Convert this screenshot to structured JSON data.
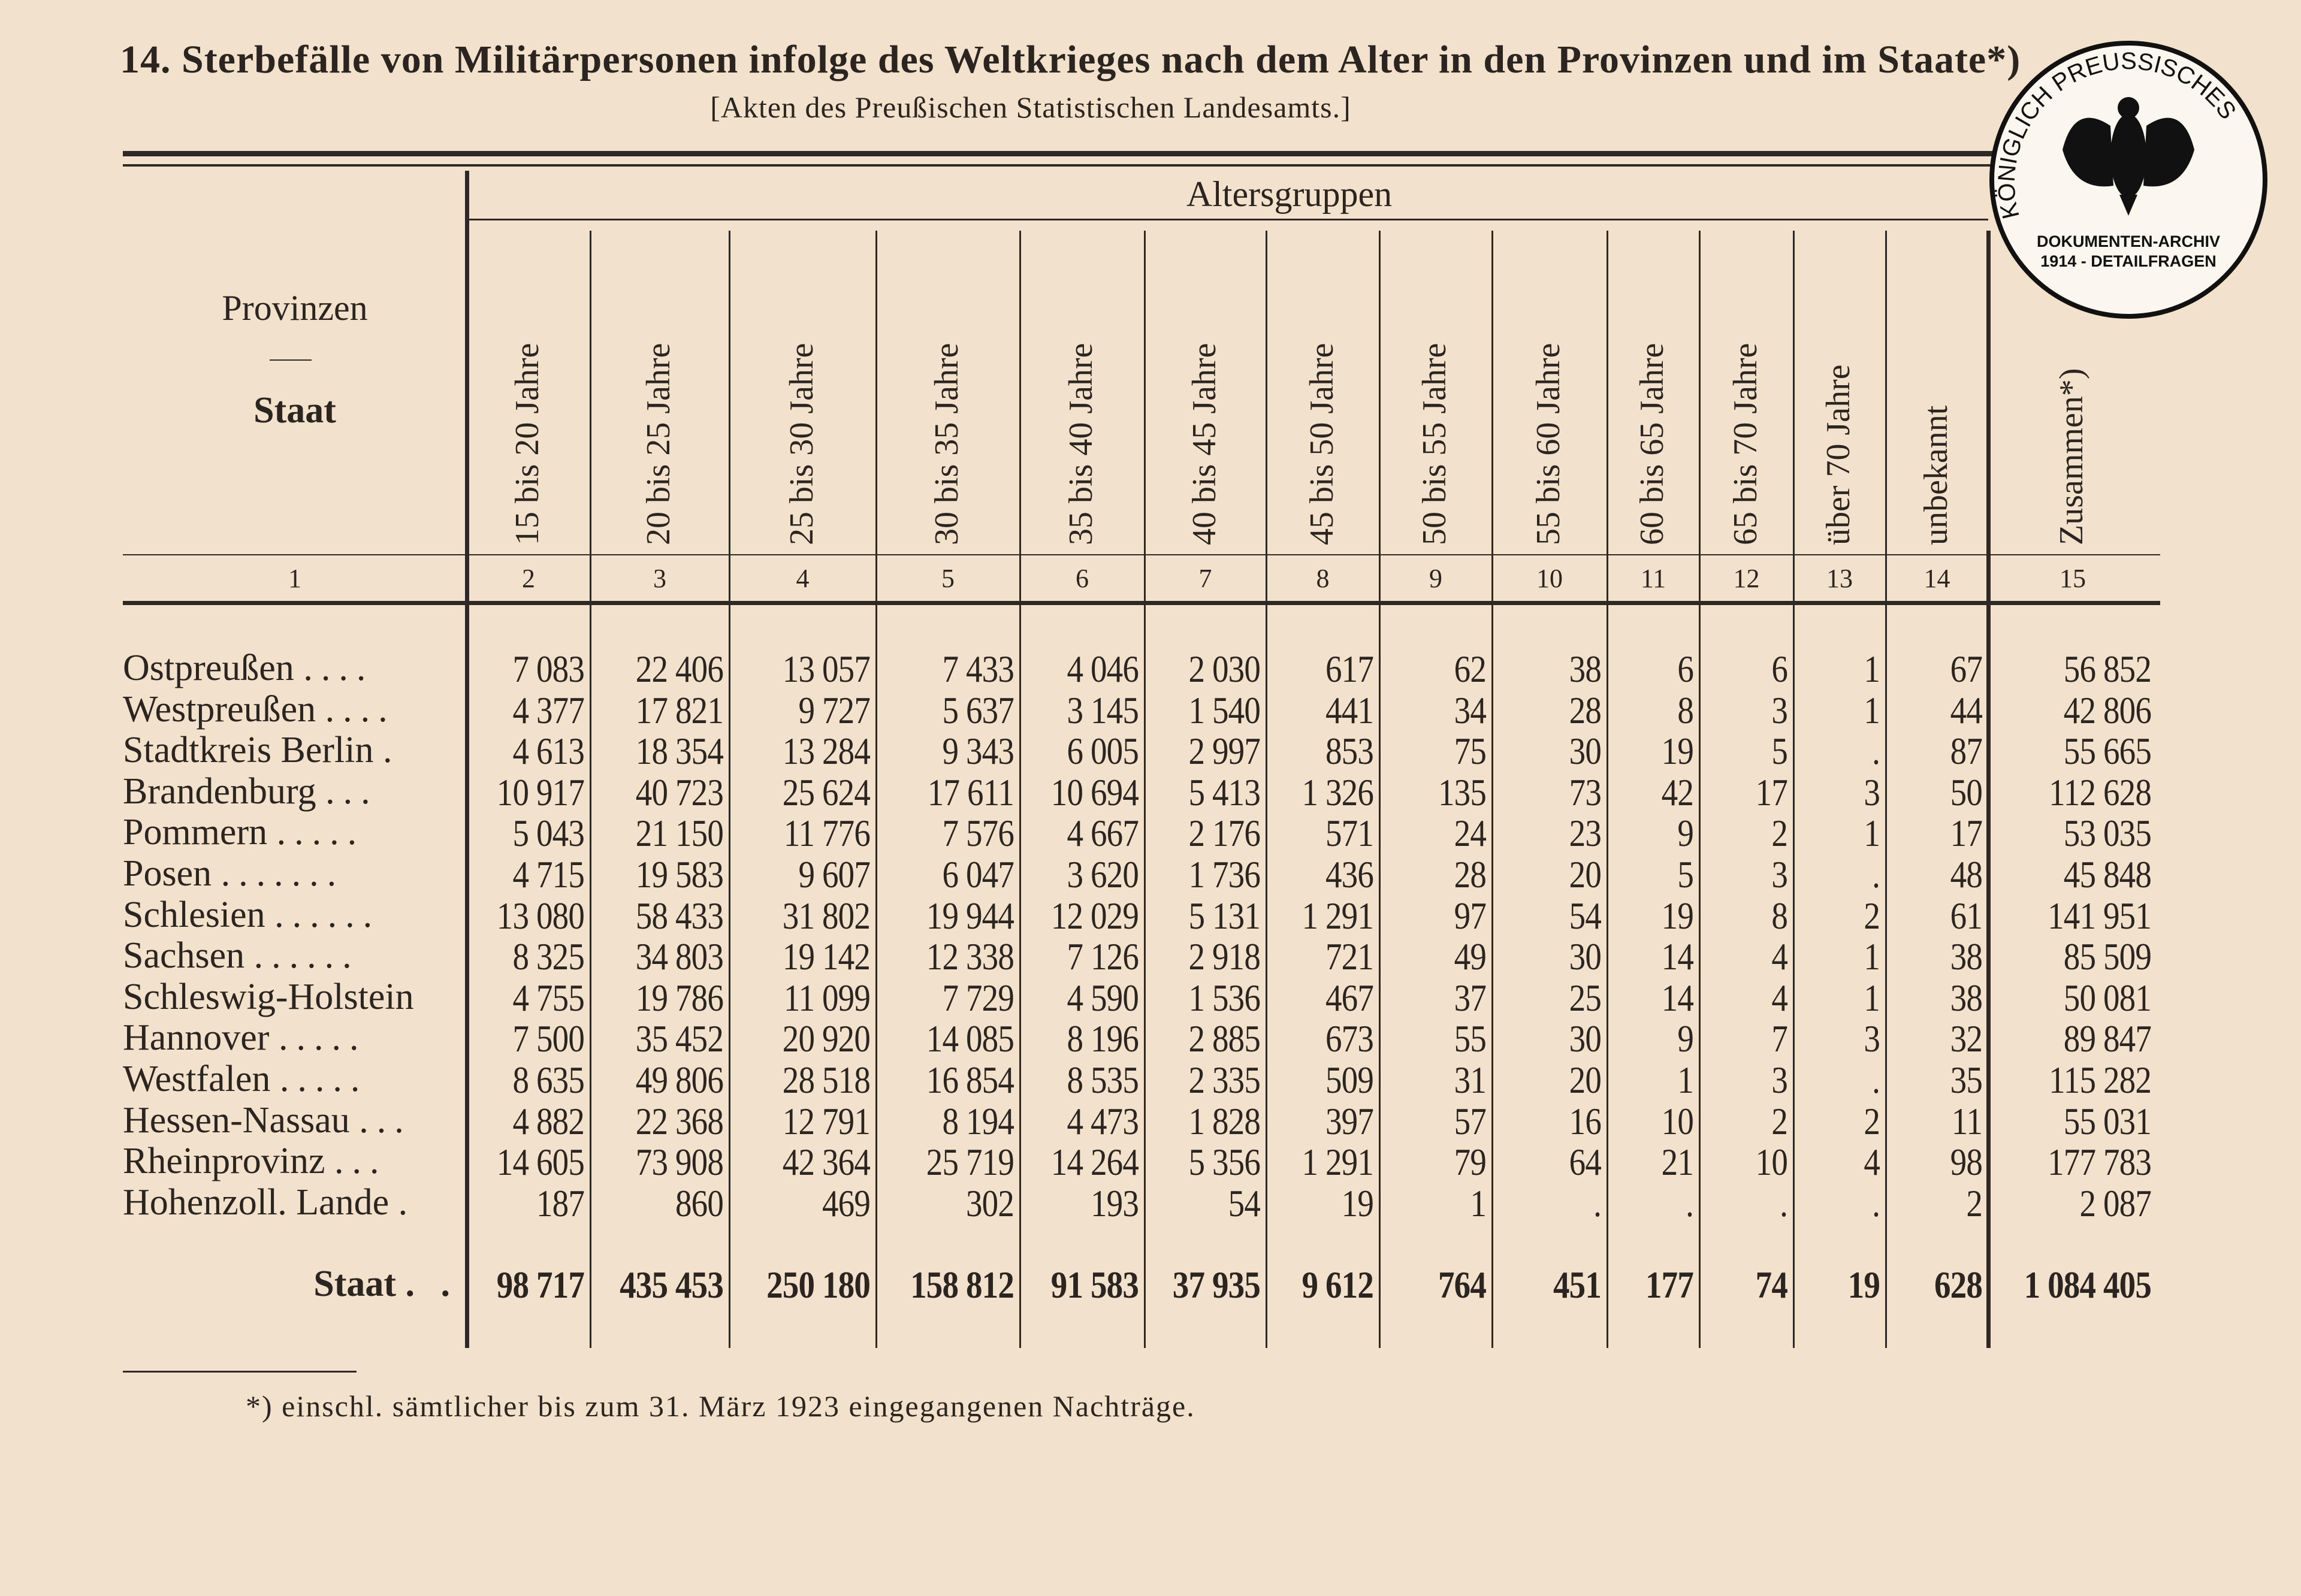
{
  "title": "14. Sterbefälle von Militärpersonen infolge des Weltkrieges nach dem Alter in den Provinzen und im Staate*)",
  "subtitle": "[Akten des Preußischen Statistischen Landesamts.]",
  "header": {
    "row_header_top": "Provinzen",
    "row_header_dash": "—",
    "row_header_bottom": "Staat",
    "group_label": "Altersgruppen",
    "columns": [
      "15 bis 20 Jahre",
      "20 bis 25 Jahre",
      "25 bis 30 Jahre",
      "30 bis 35 Jahre",
      "35 bis 40 Jahre",
      "40 bis 45 Jahre",
      "45 bis 50 Jahre",
      "50 bis 55 Jahre",
      "55 bis 60 Jahre",
      "60 bis 65 Jahre",
      "65 bis 70 Jahre",
      "über 70 Jahre",
      "unbekannt",
      "Zusammen*)"
    ],
    "column_numbers": [
      "1",
      "2",
      "3",
      "4",
      "5",
      "6",
      "7",
      "8",
      "9",
      "10",
      "11",
      "12",
      "13",
      "14",
      "15"
    ]
  },
  "rows": [
    {
      "label": "Ostpreußen",
      "dots": "....",
      "values": [
        "7 083",
        "22 406",
        "13 057",
        "7 433",
        "4 046",
        "2 030",
        "617",
        "62",
        "38",
        "6",
        "6",
        "1",
        "67",
        "56 852"
      ]
    },
    {
      "label": "Westpreußen",
      "dots": "....",
      "values": [
        "4 377",
        "17 821",
        "9 727",
        "5 637",
        "3 145",
        "1 540",
        "441",
        "34",
        "28",
        "8",
        "3",
        "1",
        "44",
        "42 806"
      ]
    },
    {
      "label": "Stadtkreis Berlin",
      "dots": ".",
      "values": [
        "4 613",
        "18 354",
        "13 284",
        "9 343",
        "6 005",
        "2 997",
        "853",
        "75",
        "30",
        "19",
        "5",
        ".",
        "87",
        "55 665"
      ]
    },
    {
      "label": "Brandenburg",
      "dots": "...",
      "values": [
        "10 917",
        "40 723",
        "25 624",
        "17 611",
        "10 694",
        "5 413",
        "1 326",
        "135",
        "73",
        "42",
        "17",
        "3",
        "50",
        "112 628"
      ]
    },
    {
      "label": "Pommern",
      "dots": ".....",
      "values": [
        "5 043",
        "21 150",
        "11 776",
        "7 576",
        "4 667",
        "2 176",
        "571",
        "24",
        "23",
        "9",
        "2",
        "1",
        "17",
        "53 035"
      ]
    },
    {
      "label": "Posen",
      "dots": ".......",
      "values": [
        "4 715",
        "19 583",
        "9 607",
        "6 047",
        "3 620",
        "1 736",
        "436",
        "28",
        "20",
        "5",
        "3",
        ".",
        "48",
        "45 848"
      ]
    },
    {
      "label": "Schlesien",
      "dots": "......",
      "values": [
        "13 080",
        "58 433",
        "31 802",
        "19 944",
        "12 029",
        "5 131",
        "1 291",
        "97",
        "54",
        "19",
        "8",
        "2",
        "61",
        "141 951"
      ]
    },
    {
      "label": "Sachsen",
      "dots": "......",
      "values": [
        "8 325",
        "34 803",
        "19 142",
        "12 338",
        "7 126",
        "2 918",
        "721",
        "49",
        "30",
        "14",
        "4",
        "1",
        "38",
        "85 509"
      ]
    },
    {
      "label": "Schleswig-Holstein",
      "dots": "",
      "values": [
        "4 755",
        "19 786",
        "11 099",
        "7 729",
        "4 590",
        "1 536",
        "467",
        "37",
        "25",
        "14",
        "4",
        "1",
        "38",
        "50 081"
      ]
    },
    {
      "label": "Hannover",
      "dots": ".....",
      "values": [
        "7 500",
        "35 452",
        "20 920",
        "14 085",
        "8 196",
        "2 885",
        "673",
        "55",
        "30",
        "9",
        "7",
        "3",
        "32",
        "89 847"
      ]
    },
    {
      "label": "Westfalen",
      "dots": ".....",
      "values": [
        "8 635",
        "49 806",
        "28 518",
        "16 854",
        "8 535",
        "2 335",
        "509",
        "31",
        "20",
        "1",
        "3",
        ".",
        "35",
        "115 282"
      ]
    },
    {
      "label": "Hessen-Nassau",
      "dots": "...",
      "values": [
        "4 882",
        "22 368",
        "12 791",
        "8 194",
        "4 473",
        "1 828",
        "397",
        "57",
        "16",
        "10",
        "2",
        "2",
        "11",
        "55 031"
      ]
    },
    {
      "label": "Rheinprovinz",
      "dots": "...",
      "values": [
        "14 605",
        "73 908",
        "42 364",
        "25 719",
        "14 264",
        "5 356",
        "1 291",
        "79",
        "64",
        "21",
        "10",
        "4",
        "98",
        "177 783"
      ]
    },
    {
      "label": "Hohenzoll. Lande",
      "dots": ".",
      "values": [
        "187",
        "860",
        "469",
        "302",
        "193",
        "54",
        "19",
        "1",
        ".",
        ".",
        ".",
        ".",
        "2",
        "2 087"
      ]
    }
  ],
  "total": {
    "label": "Staat",
    "dots": ". .",
    "values": [
      "98 717",
      "435 453",
      "250 180",
      "158 812",
      "91 583",
      "37 935",
      "9 612",
      "764",
      "451",
      "177",
      "74",
      "19",
      "628",
      "1 084 405"
    ]
  },
  "footnote": "*) einschl. sämtlicher bis zum 31. März 1923 eingegangenen Nachträge.",
  "stamp": {
    "ring_text": "KÖNIGLICH PREUSSISCHES",
    "line1": "DOKUMENTEN-ARCHIV",
    "line2": "1914 - DETAILFRAGEN",
    "icon": "prussian-eagle-icon"
  },
  "colors": {
    "paper": "#f2e2cb",
    "ink": "#2b2522"
  }
}
